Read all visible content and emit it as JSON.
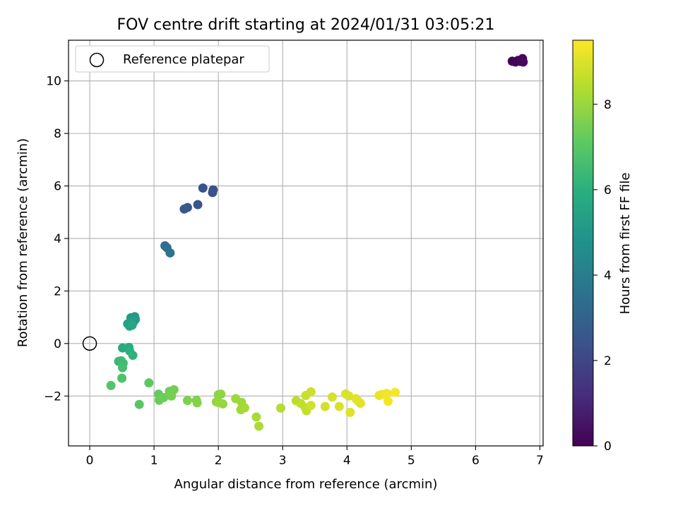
{
  "chart_data": {
    "type": "scatter",
    "title": "FOV centre drift starting at 2024/01/31 03:05:21",
    "xlabel": "Angular distance from reference (arcmin)",
    "ylabel": "Rotation from reference (arcmin)",
    "xlim": [
      -0.33,
      7.05
    ],
    "ylim": [
      -3.9,
      11.55
    ],
    "xticks": [
      0,
      1,
      2,
      3,
      4,
      5,
      6,
      7
    ],
    "yticks": [
      -2,
      0,
      2,
      4,
      6,
      8,
      10
    ],
    "grid": true,
    "legend": {
      "position": "top-left",
      "entries": [
        "Reference platepar"
      ]
    },
    "reference_point": {
      "x": 0,
      "y": 0
    },
    "colorbar": {
      "label": "Hours from first FF file",
      "colormap": "viridis",
      "range": [
        0,
        9.5
      ],
      "ticks": [
        0,
        2,
        4,
        6,
        8
      ]
    },
    "points": [
      {
        "x": 6.57,
        "y": 10.75,
        "c": 0.0
      },
      {
        "x": 6.62,
        "y": 10.72,
        "c": 0.05
      },
      {
        "x": 6.66,
        "y": 10.78,
        "c": 0.1
      },
      {
        "x": 6.7,
        "y": 10.74,
        "c": 0.15
      },
      {
        "x": 6.73,
        "y": 10.85,
        "c": 0.2
      },
      {
        "x": 6.74,
        "y": 10.72,
        "c": 0.25
      },
      {
        "x": 1.92,
        "y": 5.85,
        "c": 2.3
      },
      {
        "x": 1.91,
        "y": 5.75,
        "c": 2.35
      },
      {
        "x": 1.76,
        "y": 5.92,
        "c": 2.4
      },
      {
        "x": 1.68,
        "y": 5.29,
        "c": 2.5
      },
      {
        "x": 1.52,
        "y": 5.18,
        "c": 2.6
      },
      {
        "x": 1.47,
        "y": 5.12,
        "c": 2.65
      },
      {
        "x": 1.17,
        "y": 3.72,
        "c": 3.4
      },
      {
        "x": 1.2,
        "y": 3.65,
        "c": 3.5
      },
      {
        "x": 1.25,
        "y": 3.45,
        "c": 3.6
      },
      {
        "x": 0.7,
        "y": 1.02,
        "c": 5.0
      },
      {
        "x": 0.64,
        "y": 0.98,
        "c": 5.1
      },
      {
        "x": 0.71,
        "y": 0.92,
        "c": 5.2
      },
      {
        "x": 0.68,
        "y": 0.82,
        "c": 5.3
      },
      {
        "x": 0.59,
        "y": 0.75,
        "c": 5.4
      },
      {
        "x": 0.62,
        "y": 0.66,
        "c": 5.5
      },
      {
        "x": 0.66,
        "y": 0.7,
        "c": 5.6
      },
      {
        "x": 0.51,
        "y": -0.17,
        "c": 5.8
      },
      {
        "x": 0.61,
        "y": -0.15,
        "c": 5.9
      },
      {
        "x": 0.62,
        "y": -0.28,
        "c": 6.0
      },
      {
        "x": 0.67,
        "y": -0.45,
        "c": 6.1
      },
      {
        "x": 0.45,
        "y": -0.68,
        "c": 6.3
      },
      {
        "x": 0.49,
        "y": -0.66,
        "c": 6.4
      },
      {
        "x": 0.52,
        "y": -0.75,
        "c": 6.5
      },
      {
        "x": 0.51,
        "y": -0.92,
        "c": 6.6
      },
      {
        "x": 0.5,
        "y": -1.32,
        "c": 6.8
      },
      {
        "x": 0.33,
        "y": -1.6,
        "c": 6.9
      },
      {
        "x": 0.77,
        "y": -2.32,
        "c": 7.0
      },
      {
        "x": 0.92,
        "y": -1.5,
        "c": 7.1
      },
      {
        "x": 1.07,
        "y": -1.93,
        "c": 7.2
      },
      {
        "x": 1.1,
        "y": -2.08,
        "c": 7.25
      },
      {
        "x": 1.08,
        "y": -2.16,
        "c": 7.3
      },
      {
        "x": 1.15,
        "y": -2.06,
        "c": 7.35
      },
      {
        "x": 1.24,
        "y": -1.82,
        "c": 7.4
      },
      {
        "x": 1.31,
        "y": -1.76,
        "c": 7.45
      },
      {
        "x": 1.27,
        "y": -2.0,
        "c": 7.5
      },
      {
        "x": 1.52,
        "y": -2.17,
        "c": 7.6
      },
      {
        "x": 1.66,
        "y": -2.16,
        "c": 7.65
      },
      {
        "x": 1.67,
        "y": -2.26,
        "c": 7.7
      },
      {
        "x": 2.0,
        "y": -1.95,
        "c": 7.8
      },
      {
        "x": 2.04,
        "y": -1.93,
        "c": 7.85
      },
      {
        "x": 1.97,
        "y": -2.22,
        "c": 7.9
      },
      {
        "x": 2.07,
        "y": -2.3,
        "c": 7.95
      },
      {
        "x": 2.01,
        "y": -2.25,
        "c": 8.0
      },
      {
        "x": 2.27,
        "y": -2.1,
        "c": 8.05
      },
      {
        "x": 2.36,
        "y": -2.24,
        "c": 8.1
      },
      {
        "x": 2.35,
        "y": -2.52,
        "c": 8.15
      },
      {
        "x": 2.41,
        "y": -2.45,
        "c": 8.2
      },
      {
        "x": 2.59,
        "y": -2.8,
        "c": 8.25
      },
      {
        "x": 2.63,
        "y": -3.15,
        "c": 8.3
      },
      {
        "x": 2.97,
        "y": -2.46,
        "c": 8.4
      },
      {
        "x": 3.21,
        "y": -2.18,
        "c": 8.5
      },
      {
        "x": 3.28,
        "y": -2.28,
        "c": 8.55
      },
      {
        "x": 3.35,
        "y": -2.44,
        "c": 8.6
      },
      {
        "x": 3.37,
        "y": -2.56,
        "c": 8.65
      },
      {
        "x": 3.36,
        "y": -1.98,
        "c": 8.7
      },
      {
        "x": 3.44,
        "y": -1.84,
        "c": 8.75
      },
      {
        "x": 3.44,
        "y": -2.36,
        "c": 8.8
      },
      {
        "x": 3.66,
        "y": -2.4,
        "c": 8.85
      },
      {
        "x": 3.77,
        "y": -2.04,
        "c": 8.9
      },
      {
        "x": 3.88,
        "y": -2.4,
        "c": 8.95
      },
      {
        "x": 3.98,
        "y": -1.92,
        "c": 9.0
      },
      {
        "x": 4.03,
        "y": -2.0,
        "c": 9.0
      },
      {
        "x": 4.05,
        "y": -2.62,
        "c": 9.05
      },
      {
        "x": 4.14,
        "y": -2.1,
        "c": 9.05
      },
      {
        "x": 4.17,
        "y": -2.18,
        "c": 9.1
      },
      {
        "x": 4.21,
        "y": -2.28,
        "c": 9.1
      },
      {
        "x": 4.5,
        "y": -1.98,
        "c": 9.2
      },
      {
        "x": 4.55,
        "y": -1.94,
        "c": 9.25
      },
      {
        "x": 4.62,
        "y": -1.9,
        "c": 9.3
      },
      {
        "x": 4.64,
        "y": -2.2,
        "c": 9.35
      },
      {
        "x": 4.75,
        "y": -1.86,
        "c": 9.4
      }
    ]
  }
}
